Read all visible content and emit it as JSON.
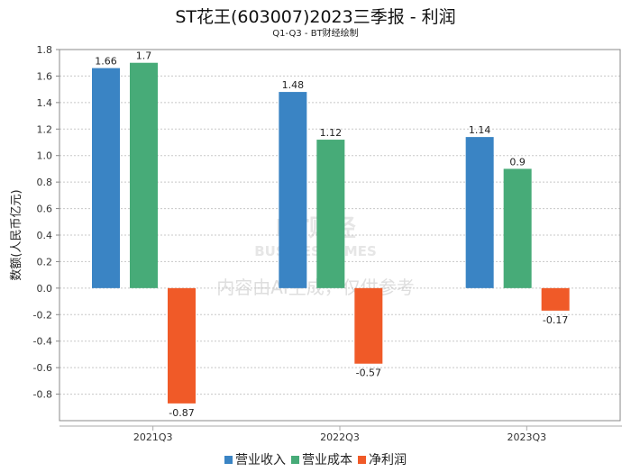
{
  "chart_data": {
    "type": "bar",
    "title": "ST花王(603007)2023三季报 - 利润",
    "subtitle": "Q1-Q3 - BT财经绘制",
    "xlabel": "",
    "ylabel": "数额(人民币亿元)",
    "categories": [
      "2021Q3",
      "2022Q3",
      "2023Q3"
    ],
    "series": [
      {
        "name": "营业收入",
        "color": "#3a84c4",
        "values": [
          1.66,
          1.48,
          1.14
        ],
        "labels": [
          "1.66",
          "1.48",
          "1.14"
        ]
      },
      {
        "name": "营业成本",
        "color": "#47ab78",
        "values": [
          1.7,
          1.12,
          0.9
        ],
        "labels": [
          "1.7",
          "1.12",
          "0.9"
        ]
      },
      {
        "name": "净利润",
        "color": "#f05a28",
        "values": [
          -0.87,
          -0.57,
          -0.17
        ],
        "labels": [
          "-0.87",
          "-0.57",
          "-0.17"
        ]
      }
    ],
    "ylim": [
      -1.0,
      1.8
    ],
    "yticks": [
      "1.8",
      "1.6",
      "1.4",
      "1.2",
      "1.0",
      "0.8",
      "0.6",
      "0.4",
      "0.2",
      "0.0",
      "-0.2",
      "-0.4",
      "-0.6",
      "-0.8"
    ],
    "grid": true,
    "legend_position": "bottom"
  },
  "watermark": {
    "brand": "BT财经",
    "brand_en": "BUSINESSTIMES",
    "notice": "内容由AI生成，仅供参考"
  }
}
